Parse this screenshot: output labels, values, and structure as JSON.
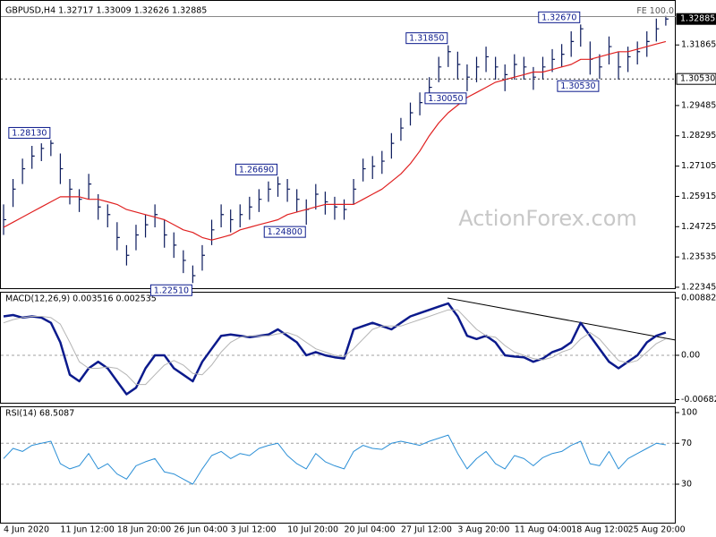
{
  "chart_data": [
    {
      "type": "ohlc",
      "title": "GBPUSD,H4  1.32717 1.33009 1.32626 1.32885",
      "watermark": "ActionForex.com",
      "color": "#0b1a5c",
      "high": [
        1.256,
        1.266,
        1.274,
        1.279,
        1.28,
        1.2813,
        1.276,
        1.266,
        1.262,
        1.268,
        1.26,
        1.256,
        1.249,
        1.24,
        1.248,
        1.252,
        1.256,
        1.25,
        1.245,
        1.238,
        1.232,
        1.24,
        1.25,
        1.256,
        1.254,
        1.256,
        1.259,
        1.262,
        1.265,
        1.2669,
        1.266,
        1.262,
        1.258,
        1.264,
        1.261,
        1.259,
        1.258,
        1.266,
        1.274,
        1.275,
        1.277,
        1.284,
        1.29,
        1.296,
        1.3,
        1.306,
        1.314,
        1.3185,
        1.316,
        1.311,
        1.314,
        1.318,
        1.314,
        1.311,
        1.315,
        1.314,
        1.31,
        1.314,
        1.317,
        1.319,
        1.324,
        1.3267,
        1.32,
        1.315,
        1.322,
        1.316,
        1.318,
        1.32,
        1.324,
        1.329,
        1.33009
      ],
      "low": [
        1.244,
        1.255,
        1.264,
        1.27,
        1.273,
        1.275,
        1.264,
        1.256,
        1.253,
        1.258,
        1.25,
        1.247,
        1.238,
        1.232,
        1.238,
        1.243,
        1.247,
        1.239,
        1.235,
        1.229,
        1.2251,
        1.23,
        1.24,
        1.247,
        1.245,
        1.247,
        1.25,
        1.253,
        1.257,
        1.259,
        1.257,
        1.253,
        1.248,
        1.254,
        1.252,
        1.25,
        1.25,
        1.256,
        1.265,
        1.266,
        1.268,
        1.274,
        1.281,
        1.287,
        1.291,
        1.297,
        1.304,
        1.31,
        1.305,
        1.3005,
        1.304,
        1.308,
        1.305,
        1.3005,
        1.305,
        1.305,
        1.301,
        1.305,
        1.308,
        1.31,
        1.314,
        1.318,
        1.307,
        1.3053,
        1.311,
        1.305,
        1.308,
        1.311,
        1.314,
        1.32,
        1.32626
      ],
      "close": [
        1.25,
        1.262,
        1.27,
        1.275,
        1.278,
        1.28,
        1.27,
        1.262,
        1.258,
        1.264,
        1.255,
        1.252,
        1.243,
        1.236,
        1.244,
        1.248,
        1.252,
        1.244,
        1.24,
        1.234,
        1.228,
        1.236,
        1.246,
        1.252,
        1.25,
        1.252,
        1.255,
        1.258,
        1.262,
        1.264,
        1.262,
        1.258,
        1.254,
        1.26,
        1.257,
        1.255,
        1.254,
        1.262,
        1.27,
        1.271,
        1.273,
        1.28,
        1.286,
        1.292,
        1.296,
        1.302,
        1.31,
        1.316,
        1.311,
        1.306,
        1.31,
        1.314,
        1.31,
        1.307,
        1.311,
        1.31,
        1.306,
        1.31,
        1.313,
        1.315,
        1.32,
        1.325,
        1.313,
        1.31,
        1.318,
        1.31,
        1.314,
        1.316,
        1.32,
        1.325,
        1.32885
      ],
      "ma": {
        "color": "#e02020",
        "values": [
          1.247,
          1.249,
          1.251,
          1.253,
          1.255,
          1.257,
          1.259,
          1.259,
          1.259,
          1.258,
          1.258,
          1.257,
          1.256,
          1.254,
          1.253,
          1.252,
          1.251,
          1.25,
          1.248,
          1.246,
          1.245,
          1.243,
          1.242,
          1.243,
          1.244,
          1.246,
          1.247,
          1.248,
          1.249,
          1.25,
          1.252,
          1.253,
          1.254,
          1.255,
          1.256,
          1.256,
          1.256,
          1.256,
          1.258,
          1.26,
          1.262,
          1.265,
          1.268,
          1.272,
          1.277,
          1.283,
          1.288,
          1.292,
          1.295,
          1.298,
          1.3,
          1.302,
          1.304,
          1.305,
          1.306,
          1.307,
          1.308,
          1.308,
          1.309,
          1.31,
          1.311,
          1.313,
          1.313,
          1.314,
          1.315,
          1.316,
          1.316,
          1.317,
          1.318,
          1.319,
          1.32
        ]
      },
      "ylim": [
        1.22273,
        1.33596
      ],
      "yticks": [
        1.22345,
        1.23535,
        1.24725,
        1.25915,
        1.27105,
        1.28295,
        1.29485,
        1.31865
      ],
      "fe_line": {
        "value": 1.3298,
        "label": "FE 100.0"
      },
      "price_markers": [
        {
          "value": 1.32885,
          "label": "1.32885",
          "style": "current"
        },
        {
          "value": 1.3053,
          "label": "1.30530",
          "style": "level"
        }
      ],
      "annotations": [
        {
          "value": 1.2813,
          "label": "1.28130",
          "at": "high"
        },
        {
          "value": 1.2251,
          "label": "1.22510",
          "at": "low"
        },
        {
          "value": 1.2669,
          "label": "1.26690",
          "at": "high"
        },
        {
          "value": 1.248,
          "label": "1.24800",
          "at": "low"
        },
        {
          "value": 1.3185,
          "label": "1.31850",
          "at": "high"
        },
        {
          "value": 1.3005,
          "label": "1.30050",
          "at": "low"
        },
        {
          "value": 1.3267,
          "label": "1.32670",
          "at": "high"
        },
        {
          "value": 1.3053,
          "label": "1.30530",
          "at": "low"
        }
      ]
    },
    {
      "type": "line",
      "title": "MACD(12,26,9) 0.003516 0.002535",
      "series": [
        {
          "color": "#0b1a8c",
          "width": 2.5,
          "values": [
            0.006,
            0.0062,
            0.0058,
            0.006,
            0.0058,
            0.005,
            0.002,
            -0.003,
            -0.004,
            -0.002,
            -0.001,
            -0.002,
            -0.004,
            -0.006,
            -0.005,
            -0.002,
            0.0,
            0.0,
            -0.002,
            -0.003,
            -0.004,
            -0.001,
            0.001,
            0.003,
            0.0032,
            0.003,
            0.0028,
            0.003,
            0.0032,
            0.004,
            0.003,
            0.002,
            0.0,
            0.0005,
            0.0,
            -0.0003,
            -0.0005,
            0.004,
            0.0045,
            0.005,
            0.0045,
            0.004,
            0.005,
            0.006,
            0.0065,
            0.007,
            0.0075,
            0.008,
            0.006,
            0.003,
            0.0025,
            0.003,
            0.002,
            0.0,
            -0.0002,
            -0.0003,
            -0.001,
            -0.0005,
            0.0005,
            0.001,
            0.002,
            0.005,
            0.003,
            0.001,
            -0.001,
            -0.002,
            -0.001,
            0.0,
            0.002,
            0.003,
            0.003516
          ]
        },
        {
          "color": "#b4b4b4",
          "width": 1,
          "values": [
            0.005,
            0.0055,
            0.0058,
            0.006,
            0.006,
            0.0058,
            0.0048,
            0.002,
            -0.001,
            -0.002,
            -0.002,
            -0.0018,
            -0.002,
            -0.003,
            -0.0045,
            -0.0045,
            -0.003,
            -0.0015,
            -0.0008,
            -0.0015,
            -0.0028,
            -0.003,
            -0.0015,
            0.0005,
            0.002,
            0.0028,
            0.003,
            0.003,
            0.003,
            0.0033,
            0.0035,
            0.003,
            0.002,
            0.001,
            0.0005,
            0.0,
            -0.0002,
            0.001,
            0.0025,
            0.004,
            0.0045,
            0.0045,
            0.0045,
            0.005,
            0.0055,
            0.006,
            0.0065,
            0.007,
            0.007,
            0.0055,
            0.004,
            0.003,
            0.0028,
            0.0015,
            0.0005,
            0.0,
            -0.0005,
            -0.0007,
            -0.0003,
            0.0005,
            0.001,
            0.0025,
            0.0035,
            0.0025,
            0.0008,
            -0.0008,
            -0.0012,
            -0.0008,
            0.0005,
            0.0018,
            0.002535
          ]
        }
      ],
      "ylim": [
        -0.00745,
        0.00965
      ],
      "yticks": [
        0.008824,
        {
          "value": 0,
          "label": "0.00"
        },
        -0.006825
      ],
      "levels": [
        0
      ]
    },
    {
      "type": "line",
      "title": "RSI(14) 68.5087",
      "series": [
        {
          "color": "#2b8fd6",
          "width": 1,
          "values": [
            55,
            65,
            62,
            68,
            70,
            72,
            50,
            45,
            48,
            60,
            45,
            50,
            40,
            35,
            48,
            52,
            55,
            42,
            40,
            35,
            30,
            45,
            58,
            62,
            55,
            60,
            58,
            65,
            68,
            70,
            58,
            50,
            45,
            60,
            52,
            48,
            45,
            62,
            68,
            65,
            64,
            70,
            72,
            70,
            68,
            72,
            75,
            78,
            60,
            45,
            55,
            62,
            50,
            45,
            58,
            55,
            48,
            56,
            60,
            62,
            68,
            72,
            50,
            48,
            62,
            45,
            55,
            60,
            65,
            70,
            68.5087
          ]
        }
      ],
      "ylim": [
        -8.5,
        105.25
      ],
      "yticks": [
        100,
        70,
        30
      ],
      "levels": [
        70,
        30
      ],
      "categories": [
        "4 Jun 2020",
        null,
        null,
        null,
        null,
        null,
        "11 Jun 12:00",
        null,
        null,
        null,
        null,
        null,
        "18 Jun 20:00",
        null,
        null,
        null,
        null,
        null,
        "26 Jun 04:00",
        null,
        null,
        null,
        null,
        null,
        "3 Jul 12:00",
        null,
        null,
        null,
        null,
        null,
        "10 Jul 20:00",
        null,
        null,
        null,
        null,
        null,
        "20 Jul 04:00",
        null,
        null,
        null,
        null,
        null,
        "27 Jul 12:00",
        null,
        null,
        null,
        null,
        null,
        "3 Aug 20:00",
        null,
        null,
        null,
        null,
        null,
        "11 Aug 04:00",
        null,
        null,
        null,
        null,
        null,
        "18 Aug 12:00",
        null,
        null,
        null,
        null,
        null,
        "25 Aug 20:00",
        null,
        null,
        null,
        null
      ]
    }
  ]
}
